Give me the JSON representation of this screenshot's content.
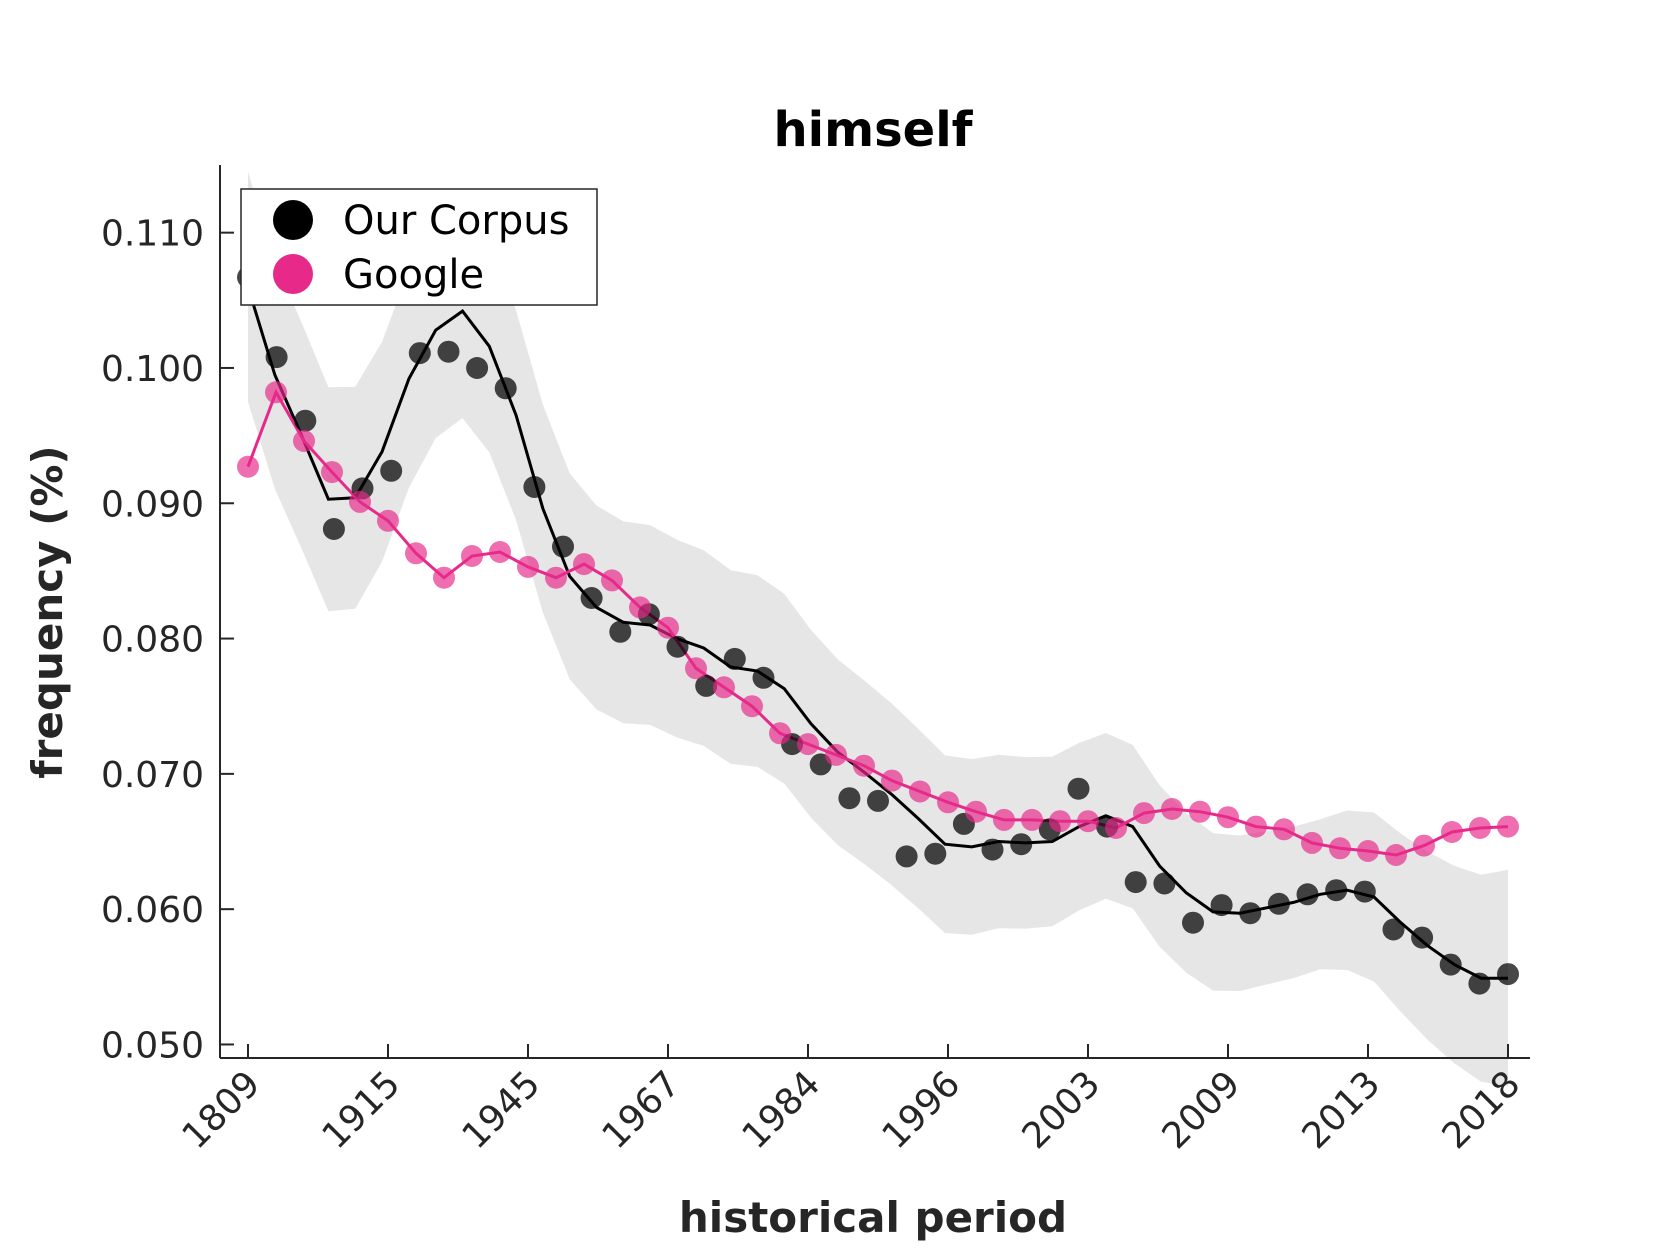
{
  "chart_data": {
    "type": "line",
    "title": "himself",
    "xlabel": "historical period",
    "ylabel": "frequency (%)",
    "categories": [
      "1809",
      "1915",
      "1945",
      "1967",
      "1984",
      "1996",
      "2003",
      "2009",
      "2013",
      "2018"
    ],
    "ylim": [
      0.049,
      0.115
    ],
    "yticks": [
      "0.050",
      "0.060",
      "0.070",
      "0.080",
      "0.090",
      "0.100",
      "0.110"
    ],
    "grid": false,
    "legend": {
      "position": "top-left",
      "entries": [
        "Our Corpus",
        "Google"
      ]
    },
    "colors": {
      "corpus": "#000000",
      "google": "#e7298a",
      "band": "#e6e6e6",
      "axis": "#262626"
    },
    "series": [
      {
        "name": "Our Corpus",
        "points": [
          0.1067,
          0.1008,
          0.0961,
          0.0881,
          0.0911,
          0.0924,
          0.1011,
          0.1012,
          0.1,
          0.0985,
          0.0912,
          0.0868,
          0.083,
          0.0805,
          0.0818,
          0.0794,
          0.0765,
          0.0785,
          0.0771,
          0.0722,
          0.0707,
          0.0682,
          0.068,
          0.0639,
          0.0641,
          0.0663,
          0.0644,
          0.0648,
          0.0659,
          0.0689,
          0.0661,
          0.062,
          0.0619,
          0.059,
          0.0603,
          0.0597,
          0.0604,
          0.0611,
          0.0614,
          0.0613,
          0.0585,
          0.0579,
          0.0559,
          0.0545,
          0.0552
        ],
        "trend": [
          0.106,
          0.0995,
          0.095,
          0.0903,
          0.0904,
          0.0938,
          0.0992,
          0.1028,
          0.1042,
          0.1016,
          0.0965,
          0.0896,
          0.0846,
          0.0823,
          0.0812,
          0.081,
          0.08,
          0.0793,
          0.0779,
          0.0776,
          0.0763,
          0.0737,
          0.0716,
          0.0701,
          0.0685,
          0.0667,
          0.0648,
          0.0646,
          0.065,
          0.0649,
          0.065,
          0.0661,
          0.0669,
          0.0661,
          0.0632,
          0.0612,
          0.0598,
          0.0597,
          0.0601,
          0.0605,
          0.0611,
          0.0614,
          0.0609,
          0.059,
          0.0573,
          0.0559,
          0.0549,
          0.0549
        ]
      },
      {
        "name": "Google",
        "points": [
          0.0927,
          0.0982,
          0.0946,
          0.0923,
          0.0901,
          0.0887,
          0.0863,
          0.0845,
          0.0861,
          0.0864,
          0.0853,
          0.0845,
          0.0855,
          0.0843,
          0.0823,
          0.0808,
          0.0778,
          0.0764,
          0.075,
          0.073,
          0.0722,
          0.0714,
          0.0706,
          0.0695,
          0.0687,
          0.0679,
          0.0672,
          0.0666,
          0.0666,
          0.0665,
          0.0665,
          0.066,
          0.0671,
          0.0674,
          0.0672,
          0.0668,
          0.0661,
          0.0659,
          0.0649,
          0.0645,
          0.0643,
          0.064,
          0.0647,
          0.0657,
          0.066,
          0.0661
        ]
      }
    ]
  }
}
